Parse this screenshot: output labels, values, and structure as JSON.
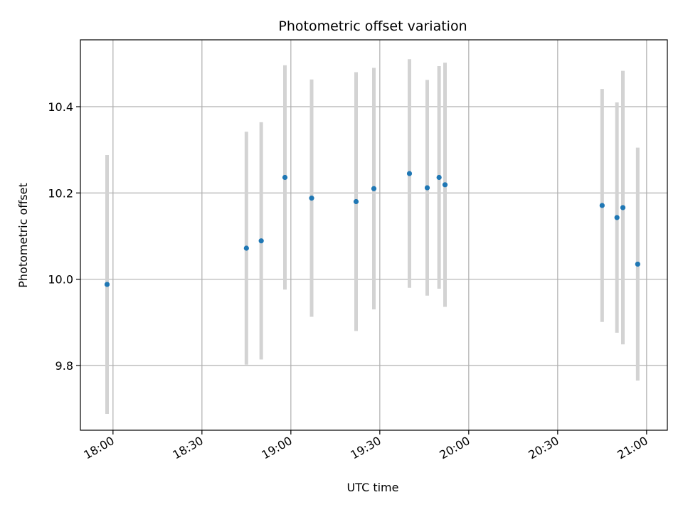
{
  "chart_data": {
    "type": "scatter",
    "title": "Photometric offset variation",
    "xlabel": "UTC time",
    "ylabel": "Photometric offset",
    "grid": true,
    "legend": "none",
    "xlim": [
      "17:49",
      "21:07"
    ],
    "ylim": [
      9.65,
      10.555
    ],
    "x_ticks": [
      "18:00",
      "18:30",
      "19:00",
      "19:30",
      "20:00",
      "20:30",
      "21:00"
    ],
    "y_ticks": [
      9.8,
      10.0,
      10.2,
      10.4
    ],
    "y_tick_labels": [
      "9.8",
      "10.0",
      "10.2",
      "10.4"
    ],
    "colors": {
      "point": "#1f77b4",
      "errorbar": "#d3d3d3",
      "grid": "#b0b0b0",
      "axes": "#000000"
    },
    "series": [
      {
        "points": [
          {
            "t": "17:58",
            "y": 9.988,
            "err": 0.3
          },
          {
            "t": "18:45",
            "y": 10.072,
            "err": 0.27
          },
          {
            "t": "18:50",
            "y": 10.089,
            "err": 0.275
          },
          {
            "t": "18:58",
            "y": 10.236,
            "err": 0.26
          },
          {
            "t": "19:07",
            "y": 10.188,
            "err": 0.275
          },
          {
            "t": "19:22",
            "y": 10.18,
            "err": 0.3
          },
          {
            "t": "19:28",
            "y": 10.21,
            "err": 0.28
          },
          {
            "t": "19:40",
            "y": 10.245,
            "err": 0.265
          },
          {
            "t": "19:46",
            "y": 10.212,
            "err": 0.25
          },
          {
            "t": "19:50",
            "y": 10.236,
            "err": 0.258
          },
          {
            "t": "19:52",
            "y": 10.219,
            "err": 0.283
          },
          {
            "t": "20:45",
            "y": 10.171,
            "err": 0.27
          },
          {
            "t": "20:50",
            "y": 10.143,
            "err": 0.267
          },
          {
            "t": "20:52",
            "y": 10.166,
            "err": 0.317
          },
          {
            "t": "20:57",
            "y": 10.035,
            "err": 0.27
          }
        ]
      }
    ]
  }
}
